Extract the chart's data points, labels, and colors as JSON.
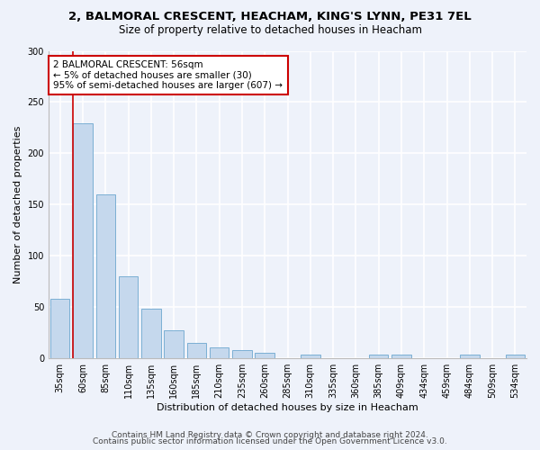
{
  "title1": "2, BALMORAL CRESCENT, HEACHAM, KING'S LYNN, PE31 7EL",
  "title2": "Size of property relative to detached houses in Heacham",
  "xlabel": "Distribution of detached houses by size in Heacham",
  "ylabel": "Number of detached properties",
  "categories": [
    "35sqm",
    "60sqm",
    "85sqm",
    "110sqm",
    "135sqm",
    "160sqm",
    "185sqm",
    "210sqm",
    "235sqm",
    "260sqm",
    "285sqm",
    "310sqm",
    "335sqm",
    "360sqm",
    "385sqm",
    "409sqm",
    "434sqm",
    "459sqm",
    "484sqm",
    "509sqm",
    "534sqm"
  ],
  "values": [
    58,
    229,
    160,
    80,
    48,
    27,
    15,
    10,
    8,
    5,
    0,
    3,
    0,
    0,
    3,
    3,
    0,
    0,
    3,
    0,
    3
  ],
  "bar_color": "#c5d8ed",
  "bar_edge_color": "#7bafd4",
  "annotation_line1": "2 BALMORAL CRESCENT: 56sqm",
  "annotation_line2": "← 5% of detached houses are smaller (30)",
  "annotation_line3": "95% of semi-detached houses are larger (607) →",
  "annotation_box_color": "#ffffff",
  "annotation_box_edge": "#cc0000",
  "vline_color": "#cc0000",
  "footer1": "Contains HM Land Registry data © Crown copyright and database right 2024.",
  "footer2": "Contains public sector information licensed under the Open Government Licence v3.0.",
  "ylim": [
    0,
    300
  ],
  "yticks": [
    0,
    50,
    100,
    150,
    200,
    250,
    300
  ],
  "bg_color": "#eef2fa",
  "grid_color": "#ffffff",
  "title1_fontsize": 9.5,
  "title2_fontsize": 8.5,
  "axis_label_fontsize": 8,
  "tick_fontsize": 7,
  "footer_fontsize": 6.5,
  "annotation_fontsize": 7.5
}
